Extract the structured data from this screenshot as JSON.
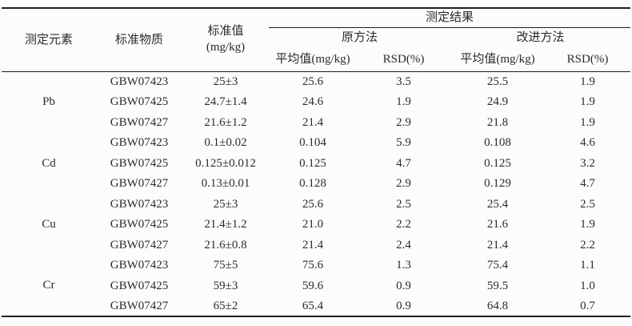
{
  "table": {
    "header": {
      "element": "测定元素",
      "material": "标准物质",
      "standard_value_line1": "标准值",
      "standard_value_line2": "(mg/kg)",
      "results_group": "测定结果",
      "methods": {
        "original": "原方法",
        "improved": "改进方法"
      },
      "mean_label": "平均值(mg/kg)",
      "rsd_label": "RSD(%)"
    },
    "groups": [
      {
        "element": "Pb",
        "rows": [
          {
            "material": "GBW07423",
            "standard": "25±3",
            "orig_mean": "25.6",
            "orig_rsd": "3.5",
            "impr_mean": "25.5",
            "impr_rsd": "1.9"
          },
          {
            "material": "GBW07425",
            "standard": "24.7±1.4",
            "orig_mean": "24.6",
            "orig_rsd": "1.9",
            "impr_mean": "24.9",
            "impr_rsd": "1.9"
          },
          {
            "material": "GBW07427",
            "standard": "21.6±1.2",
            "orig_mean": "21.4",
            "orig_rsd": "2.9",
            "impr_mean": "21.8",
            "impr_rsd": "1.9"
          }
        ]
      },
      {
        "element": "Cd",
        "rows": [
          {
            "material": "GBW07423",
            "standard": "0.1±0.02",
            "orig_mean": "0.104",
            "orig_rsd": "5.9",
            "impr_mean": "0.108",
            "impr_rsd": "4.6"
          },
          {
            "material": "GBW07425",
            "standard": "0.125±0.012",
            "orig_mean": "0.125",
            "orig_rsd": "4.7",
            "impr_mean": "0.125",
            "impr_rsd": "3.2"
          },
          {
            "material": "GBW07427",
            "standard": "0.13±0.01",
            "orig_mean": "0.128",
            "orig_rsd": "2.9",
            "impr_mean": "0.129",
            "impr_rsd": "4.7"
          }
        ]
      },
      {
        "element": "Cu",
        "rows": [
          {
            "material": "GBW07423",
            "standard": "25±3",
            "orig_mean": "25.6",
            "orig_rsd": "2.5",
            "impr_mean": "25.4",
            "impr_rsd": "2.5"
          },
          {
            "material": "GBW07425",
            "standard": "21.4±1.2",
            "orig_mean": "21.0",
            "orig_rsd": "2.2",
            "impr_mean": "21.6",
            "impr_rsd": "1.9"
          },
          {
            "material": "GBW07427",
            "standard": "21.6±0.8",
            "orig_mean": "21.4",
            "orig_rsd": "2.4",
            "impr_mean": "21.4",
            "impr_rsd": "2.2"
          }
        ]
      },
      {
        "element": "Cr",
        "rows": [
          {
            "material": "GBW07423",
            "standard": "75±5",
            "orig_mean": "75.6",
            "orig_rsd": "1.3",
            "impr_mean": "75.4",
            "impr_rsd": "1.1"
          },
          {
            "material": "GBW07425",
            "standard": "59±3",
            "orig_mean": "59.6",
            "orig_rsd": "0.9",
            "impr_mean": "59.5",
            "impr_rsd": "1.0"
          },
          {
            "material": "GBW07427",
            "standard": "65±2",
            "orig_mean": "65.4",
            "orig_rsd": "0.9",
            "impr_mean": "64.8",
            "impr_rsd": "0.7"
          }
        ]
      }
    ]
  },
  "colors": {
    "text": "#2b2b2b",
    "rule": "#1f1f1f",
    "background": "#fcfcfc"
  }
}
